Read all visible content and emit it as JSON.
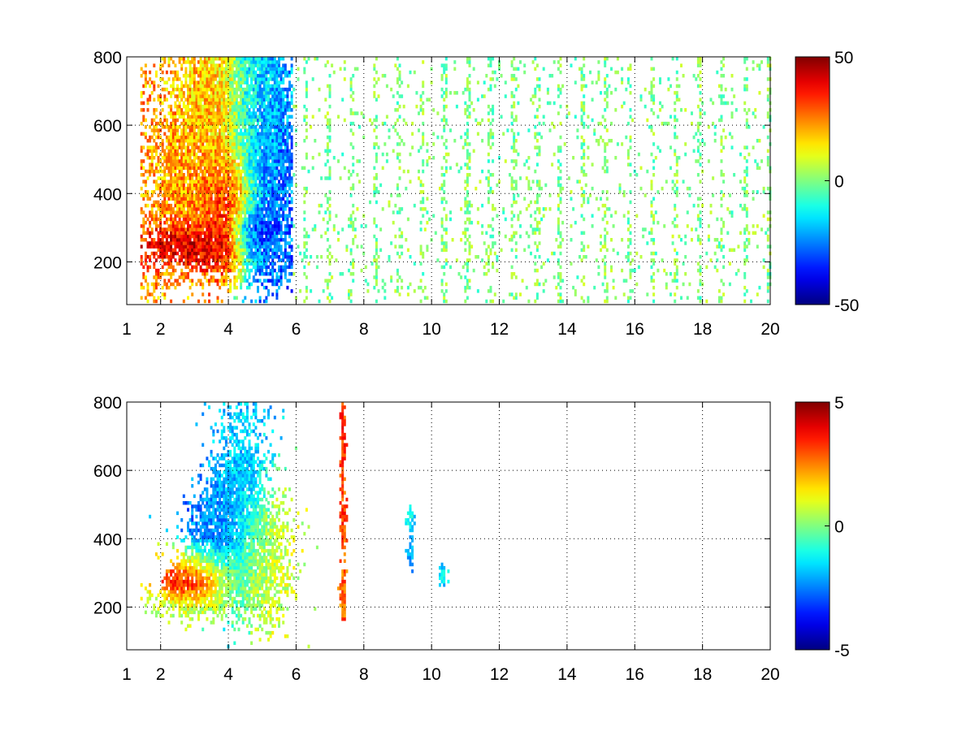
{
  "chart_data": [
    {
      "type": "heatmap",
      "panel": "top",
      "xlim": [
        1,
        20
      ],
      "ylim": [
        75,
        800
      ],
      "x_ticks": [
        1,
        2,
        4,
        6,
        8,
        10,
        12,
        14,
        16,
        18,
        20
      ],
      "y_ticks": [
        200,
        400,
        600,
        800
      ],
      "colorbar": {
        "min": -50,
        "max": 50,
        "ticks": [
          -50,
          0,
          50
        ],
        "colormap": "jet"
      },
      "grid": true,
      "grid_style": "dotted",
      "blobs": [
        {
          "x": 2.9,
          "y": 250,
          "sx": 0.7,
          "sy": 35,
          "value": 48
        },
        {
          "x": 3.0,
          "y": 420,
          "sx": 0.9,
          "sy": 150,
          "value": 22
        },
        {
          "x": 3.6,
          "y": 650,
          "sx": 0.6,
          "sy": 130,
          "value": 18
        },
        {
          "x": 4.0,
          "y": 330,
          "sx": 0.45,
          "sy": 90,
          "value": 45
        },
        {
          "x": 4.6,
          "y": 290,
          "sx": 0.35,
          "sy": 45,
          "value": -50
        },
        {
          "x": 5.1,
          "y": 450,
          "sx": 0.55,
          "sy": 220,
          "value": -28
        },
        {
          "x": 4.8,
          "y": 680,
          "sx": 0.5,
          "sy": 110,
          "value": -14
        }
      ]
    },
    {
      "type": "heatmap",
      "panel": "bottom",
      "xlim": [
        1,
        20
      ],
      "ylim": [
        75,
        800
      ],
      "x_ticks": [
        1,
        2,
        4,
        6,
        8,
        10,
        12,
        14,
        16,
        18,
        20
      ],
      "y_ticks": [
        200,
        400,
        600,
        800
      ],
      "colorbar": {
        "min": -5,
        "max": 5,
        "ticks": [
          -5,
          0,
          5
        ],
        "colormap": "jet"
      },
      "grid": true,
      "grid_style": "dotted",
      "blobs": [
        {
          "x": 2.9,
          "y": 260,
          "sx": 0.45,
          "sy": 30,
          "value": 4.6
        },
        {
          "x": 3.2,
          "y": 300,
          "sx": 0.6,
          "sy": 40,
          "value": 2.0
        },
        {
          "x": 3.6,
          "y": 420,
          "sx": 0.5,
          "sy": 90,
          "value": -2.5
        },
        {
          "x": 4.3,
          "y": 520,
          "sx": 0.45,
          "sy": 170,
          "value": -1.8
        },
        {
          "x": 5.0,
          "y": 330,
          "sx": 0.5,
          "sy": 110,
          "value": 0.8
        },
        {
          "x": 3.0,
          "y": 210,
          "sx": 0.7,
          "sy": 30,
          "value": 0.6
        },
        {
          "x": 7.35,
          "y": 690,
          "sx": 0.05,
          "sy": 60,
          "value": 3.3
        },
        {
          "x": 7.35,
          "y": 450,
          "sx": 0.05,
          "sy": 60,
          "value": 3.1
        },
        {
          "x": 7.35,
          "y": 240,
          "sx": 0.05,
          "sy": 50,
          "value": 2.8
        },
        {
          "x": 9.35,
          "y": 450,
          "sx": 0.06,
          "sy": 25,
          "value": -1.5
        },
        {
          "x": 9.35,
          "y": 350,
          "sx": 0.06,
          "sy": 20,
          "value": -2.0
        },
        {
          "x": 10.3,
          "y": 290,
          "sx": 0.06,
          "sy": 20,
          "value": -1.5
        }
      ]
    }
  ]
}
